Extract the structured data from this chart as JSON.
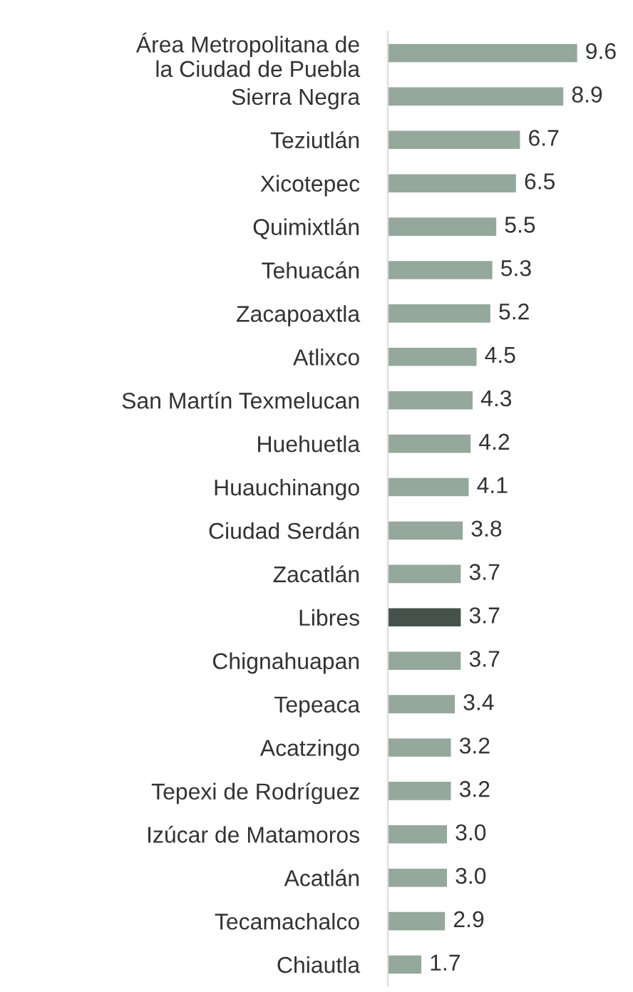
{
  "chart_data": {
    "type": "bar",
    "orientation": "horizontal",
    "data_labels": true,
    "grid": false,
    "legend": false,
    "tick_labels": "y",
    "categories": [
      "Área Metropolitana de\nla Ciudad de Puebla",
      "Sierra Negra",
      "Teziutlán",
      "Xicotepec",
      "Quimixtlán",
      "Tehuacán",
      "Zacapoaxtla",
      "Atlixco",
      "San Martín Texmelucan",
      "Huehuetla",
      "Huauchinango",
      "Ciudad Serdán",
      "Zacatlán",
      "Libres",
      "Chignahuapan",
      "Tepeaca",
      "Acatzingo",
      "Tepexi de Rodríguez",
      "Izúcar de Matamoros",
      "Acatlán",
      "Tecamachalco",
      "Chiautla"
    ],
    "values": [
      9.6,
      8.9,
      6.7,
      6.5,
      5.5,
      5.3,
      5.2,
      4.5,
      4.3,
      4.2,
      4.1,
      3.8,
      3.7,
      3.7,
      3.7,
      3.4,
      3.2,
      3.2,
      3.0,
      3.0,
      2.9,
      1.7
    ],
    "value_labels": [
      "9.6",
      "8.9",
      "6.7",
      "6.5",
      "5.5",
      "5.3",
      "5.2",
      "4.5",
      "4.3",
      "4.2",
      "4.1",
      "3.8",
      "3.7",
      "3.7",
      "3.7",
      "3.4",
      "3.2",
      "3.2",
      "3.0",
      "3.0",
      "2.9",
      "1.7"
    ],
    "colors": [
      "#94a89c",
      "#94a89c",
      "#94a89c",
      "#94a89c",
      "#94a89c",
      "#94a89c",
      "#94a89c",
      "#94a89c",
      "#94a89c",
      "#94a89c",
      "#94a89c",
      "#94a89c",
      "#94a89c",
      "#45524b",
      "#94a89c",
      "#94a89c",
      "#94a89c",
      "#94a89c",
      "#94a89c",
      "#94a89c",
      "#94a89c",
      "#94a89c"
    ]
  }
}
